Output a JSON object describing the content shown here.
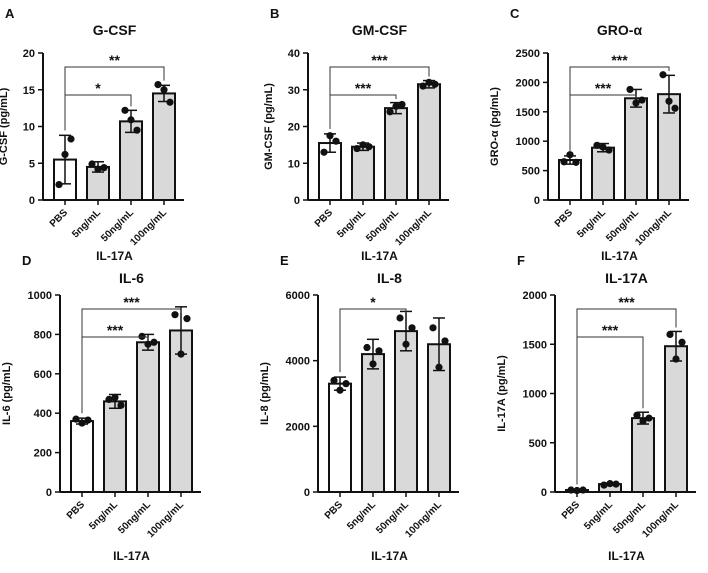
{
  "chart_data": [
    {
      "type": "bar",
      "panel": "A",
      "title": "G-CSF",
      "ylabel": "G-CSF (pg/mL)",
      "xlabel": "IL-17A",
      "categories": [
        "PBS",
        "5ng/mL",
        "50ng/mL",
        "100ng/mL"
      ],
      "ylim": [
        0,
        20
      ],
      "yticks": [
        0,
        5,
        10,
        15,
        20
      ],
      "values": [
        5.5,
        4.5,
        10.7,
        14.5
      ],
      "sd": [
        3.3,
        0.7,
        1.5,
        1.1
      ],
      "points": [
        [
          2.1,
          6.2,
          8.3
        ],
        [
          4.9,
          4.2,
          4.4
        ],
        [
          12.2,
          10.9,
          9.5
        ],
        [
          15.7,
          15.0,
          13.3
        ]
      ],
      "significance": [
        {
          "from": 0,
          "to": 2,
          "label": "*"
        },
        {
          "from": 0,
          "to": 3,
          "label": "**"
        }
      ]
    },
    {
      "type": "bar",
      "panel": "B",
      "title": "GM-CSF",
      "ylabel": "GM-CSF (pg/mL)",
      "xlabel": "IL-17A",
      "categories": [
        "PBS",
        "5ng/mL",
        "50ng/mL",
        "100ng/mL"
      ],
      "ylim": [
        0,
        40
      ],
      "yticks": [
        0,
        10,
        20,
        30,
        40
      ],
      "values": [
        15.5,
        14.5,
        25,
        31.5
      ],
      "sd": [
        2.5,
        1.0,
        1.5,
        1.0
      ],
      "points": [
        [
          13,
          17.5,
          16
        ],
        [
          14,
          15,
          14.5
        ],
        [
          24,
          25.5,
          26
        ],
        [
          31,
          32,
          31.5
        ]
      ],
      "significance": [
        {
          "from": 0,
          "to": 2,
          "label": "***"
        },
        {
          "from": 0,
          "to": 3,
          "label": "***"
        }
      ]
    },
    {
      "type": "bar",
      "panel": "C",
      "title": "GRO-α",
      "ylabel": "GRO-α (pg/mL)",
      "xlabel": "IL-17A",
      "categories": [
        "PBS",
        "5ng/mL",
        "50ng/mL",
        "100ng/mL"
      ],
      "ylim": [
        0,
        2500
      ],
      "yticks": [
        0,
        500,
        1000,
        1500,
        2000,
        2500
      ],
      "values": [
        680,
        890,
        1730,
        1800
      ],
      "sd": [
        70,
        70,
        150,
        320
      ],
      "points": [
        [
          650,
          770,
          640
        ],
        [
          930,
          900,
          850
        ],
        [
          1880,
          1650,
          1700
        ],
        [
          2130,
          1680,
          1560
        ]
      ],
      "significance": [
        {
          "from": 0,
          "to": 2,
          "label": "***"
        },
        {
          "from": 0,
          "to": 3,
          "label": "***"
        }
      ]
    },
    {
      "type": "bar",
      "panel": "D",
      "title": "IL-6",
      "ylabel": "IL-6 (pg/mL)",
      "xlabel": "IL-17A",
      "categories": [
        "PBS",
        "5ng/mL",
        "50ng/mL",
        "100ng/mL"
      ],
      "ylim": [
        0,
        1000
      ],
      "yticks": [
        0,
        200,
        400,
        600,
        800,
        1000
      ],
      "values": [
        360,
        460,
        760,
        820
      ],
      "sd": [
        15,
        35,
        40,
        120
      ],
      "points": [
        [
          370,
          350,
          365
        ],
        [
          470,
          480,
          440
        ],
        [
          790,
          750,
          760
        ],
        [
          900,
          700,
          880
        ]
      ],
      "significance": [
        {
          "from": 0,
          "to": 2,
          "label": "***"
        },
        {
          "from": 0,
          "to": 3,
          "label": "***"
        }
      ]
    },
    {
      "type": "bar",
      "panel": "E",
      "title": "IL-8",
      "ylabel": "IL-8 (pg/mL)",
      "xlabel": "IL-17A",
      "categories": [
        "PBS",
        "5ng/mL",
        "50ng/mL",
        "100ng/mL"
      ],
      "ylim": [
        0,
        6000
      ],
      "yticks": [
        0,
        2000,
        4000,
        6000
      ],
      "values": [
        3300,
        4200,
        4900,
        4500
      ],
      "sd": [
        200,
        450,
        600,
        800
      ],
      "points": [
        [
          3400,
          3100,
          3300
        ],
        [
          4400,
          3900,
          4300
        ],
        [
          5300,
          4500,
          5000
        ],
        [
          5000,
          3800,
          4600
        ]
      ],
      "significance": [
        {
          "from": 0,
          "to": 2,
          "label": "*"
        }
      ]
    },
    {
      "type": "bar",
      "panel": "F",
      "title": "IL-17A",
      "ylabel": "IL-17A (pg/mL)",
      "xlabel": "IL-17A",
      "categories": [
        "PBS",
        "5ng/mL",
        "50ng/mL",
        "100ng/mL"
      ],
      "ylim": [
        0,
        2000
      ],
      "yticks": [
        0,
        500,
        1000,
        1500,
        2000
      ],
      "values": [
        20,
        80,
        750,
        1480
      ],
      "sd": [
        5,
        10,
        60,
        150
      ],
      "points": [
        [
          20,
          15,
          20
        ],
        [
          70,
          85,
          80
        ],
        [
          780,
          720,
          750
        ],
        [
          1600,
          1350,
          1520
        ]
      ],
      "significance": [
        {
          "from": 0,
          "to": 2,
          "label": "***"
        },
        {
          "from": 0,
          "to": 3,
          "label": "***"
        }
      ]
    }
  ],
  "colors": {
    "control_bar": "#ffffff",
    "treated_bar": "#d9d9d9",
    "stroke": "#111111",
    "star": "#1a2a4a"
  }
}
